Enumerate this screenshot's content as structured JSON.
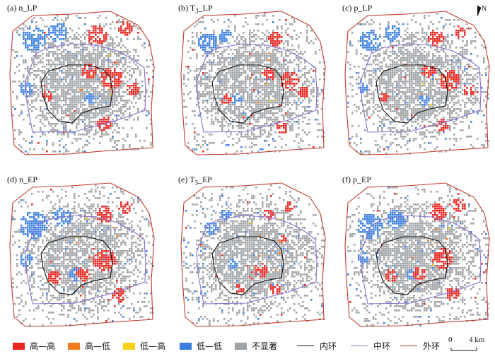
{
  "panels": [
    {
      "id": "a",
      "prefix": "(a) ",
      "base": "n",
      "sub": "",
      "suffix": "_LP"
    },
    {
      "id": "b",
      "prefix": "(b) ",
      "base": "T",
      "sub": "3",
      "suffix": "_LP"
    },
    {
      "id": "c",
      "prefix": "(c) ",
      "base": "p",
      "sub": "",
      "suffix": "_LP"
    },
    {
      "id": "d",
      "prefix": "(d) ",
      "base": "n",
      "sub": "",
      "suffix": "_EP"
    },
    {
      "id": "e",
      "prefix": "(e) ",
      "base": "T",
      "sub": "3",
      "suffix": "_EP"
    },
    {
      "id": "f",
      "prefix": "(f) ",
      "base": "p",
      "sub": "",
      "suffix": "_EP"
    }
  ],
  "north_label": "N",
  "legend": {
    "categories": [
      {
        "label": "高—高",
        "color": "#e8251f"
      },
      {
        "label": "高—低",
        "color": "#f47c20"
      },
      {
        "label": "低—高",
        "color": "#f5d21a"
      },
      {
        "label": "低—低",
        "color": "#3d7fe0"
      },
      {
        "label": "不显著",
        "color": "#a0a3a6"
      }
    ],
    "lines": [
      {
        "label": "内环",
        "color": "#111111"
      },
      {
        "label": "中环",
        "color": "#8a6fd0"
      },
      {
        "label": "外环",
        "color": "#c0392b"
      }
    ]
  },
  "scale": {
    "zero": "0",
    "value": "4 km"
  }
}
